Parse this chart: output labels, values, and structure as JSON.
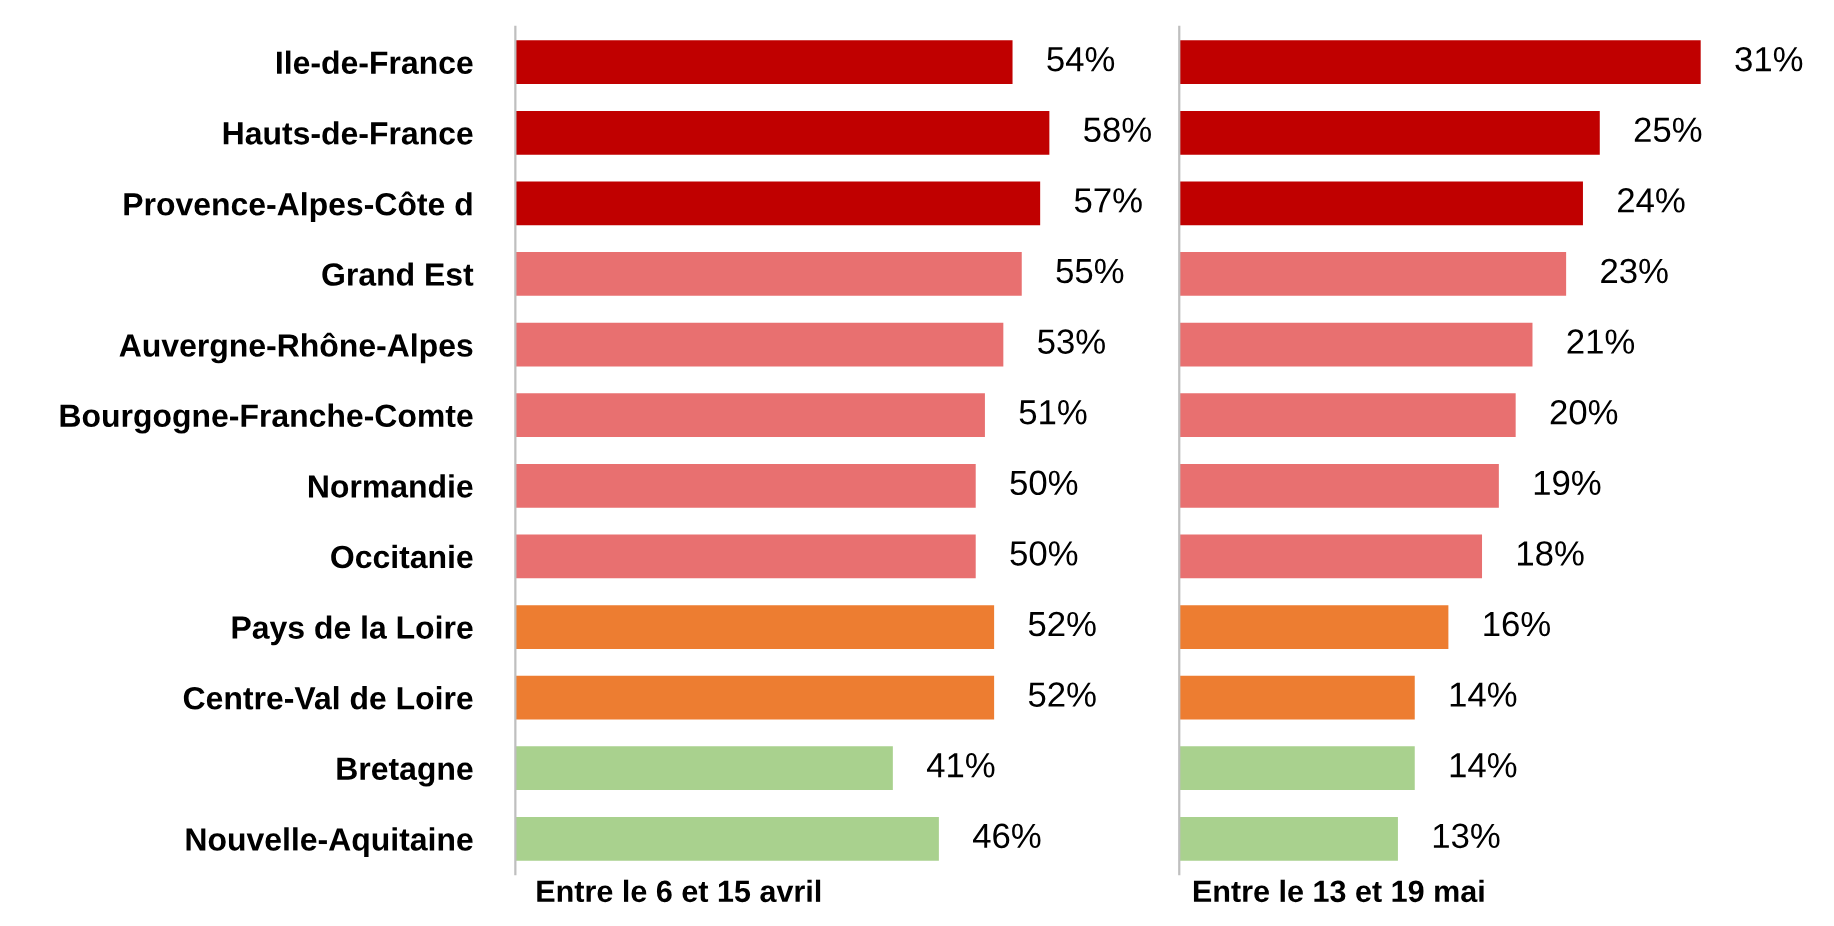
{
  "chart_data": [
    {
      "type": "bar",
      "orientation": "horizontal",
      "xlabel": "Entre le 6 et 15 avril",
      "tick_labels": "y",
      "categories": [
        "Ile-de-France",
        "Hauts-de-France",
        "Provence-Alpes-Côte d",
        "Grand Est",
        "Auvergne-Rhône-Alpes",
        "Bourgogne-Franche-Comte",
        "Normandie",
        "Occitanie",
        "Pays de la Loire",
        "Centre-Val de Loire",
        "Bretagne",
        "Nouvelle-Aquitaine"
      ],
      "values": [
        54,
        58,
        57,
        55,
        53,
        51,
        50,
        50,
        52,
        52,
        41,
        46
      ],
      "value_labels": [
        "54%",
        "58%",
        "57%",
        "55%",
        "53%",
        "51%",
        "50%",
        "50%",
        "52%",
        "52%",
        "41%",
        "46%"
      ],
      "colors": [
        "#c00000",
        "#c00000",
        "#c00000",
        "#e87070",
        "#e87070",
        "#e87070",
        "#e87070",
        "#e87070",
        "#ed7d31",
        "#ed7d31",
        "#a9d18e",
        "#a9d18e"
      ]
    },
    {
      "type": "bar",
      "orientation": "horizontal",
      "xlabel": "Entre le 13 et 19 mai",
      "tick_labels": false,
      "categories": [
        null,
        null,
        null,
        null,
        null,
        null,
        null,
        null,
        null,
        null,
        null,
        null
      ],
      "values": [
        31,
        25,
        24,
        23,
        21,
        20,
        19,
        18,
        16,
        14,
        14,
        13
      ],
      "value_labels": [
        "31%",
        "25%",
        "24%",
        "23%",
        "21%",
        "20%",
        "19%",
        "18%",
        "16%",
        "14%",
        "14%",
        "13%"
      ],
      "colors": [
        "#c00000",
        "#c00000",
        "#c00000",
        "#e87070",
        "#e87070",
        "#e87070",
        "#e87070",
        "#e87070",
        "#ed7d31",
        "#ed7d31",
        "#a9d18e",
        "#a9d18e"
      ]
    }
  ]
}
